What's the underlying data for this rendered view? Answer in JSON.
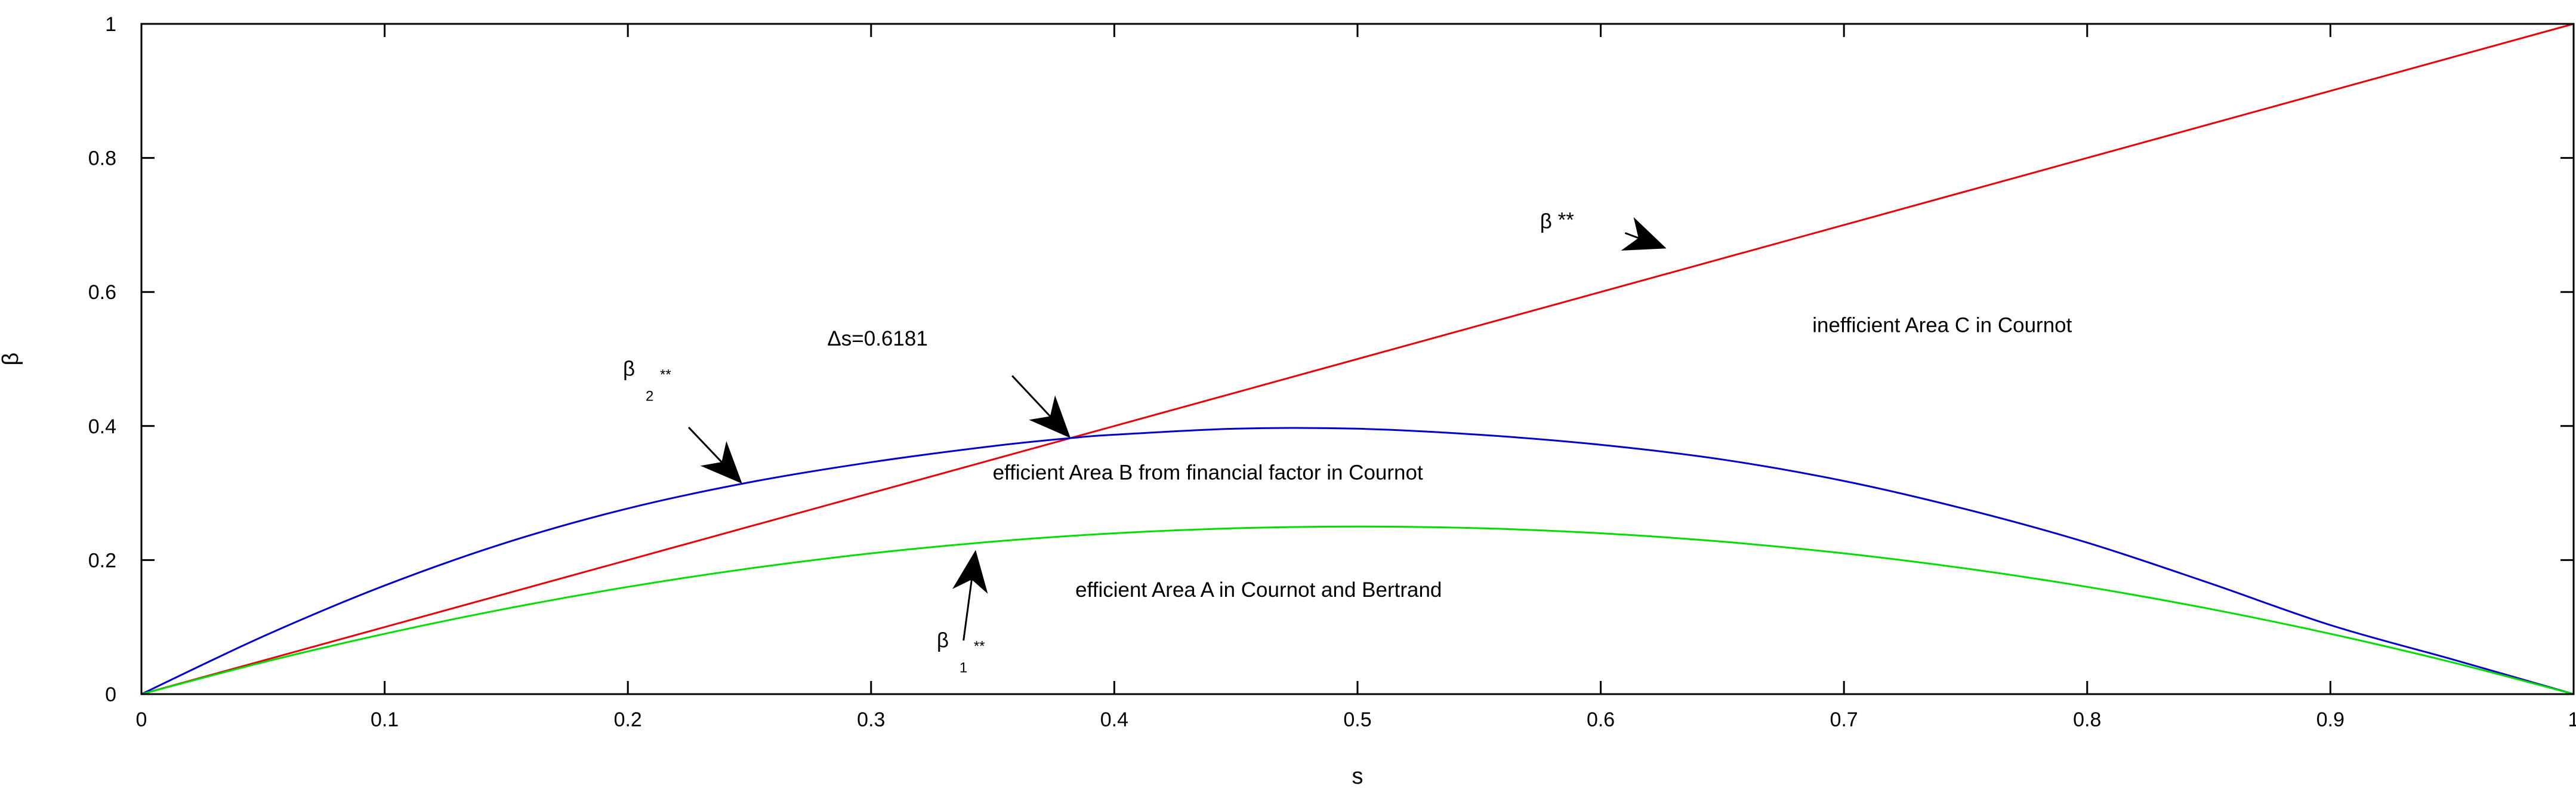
{
  "chart_data": {
    "type": "line",
    "xlabel": "s",
    "ylabel": "β",
    "xlim": [
      0,
      1
    ],
    "ylim": [
      0,
      1
    ],
    "xticks": [
      "0",
      "0.1",
      "0.2",
      "0.3",
      "0.4",
      "0.5",
      "0.6",
      "0.7",
      "0.8",
      "0.9",
      "1"
    ],
    "yticks": [
      "0",
      "0.2",
      "0.4",
      "0.6",
      "0.8",
      "1"
    ],
    "grid": false,
    "box": true,
    "series": [
      {
        "color": "#e8000b",
        "x": [
          0,
          0.1,
          0.2,
          0.3,
          0.4,
          0.5,
          0.6,
          0.7,
          0.8,
          0.9,
          1
        ],
        "y": [
          0,
          0.1,
          0.2,
          0.3,
          0.4,
          0.5,
          0.6,
          0.7,
          0.8,
          0.9,
          1
        ]
      },
      {
        "color": "#0000cc",
        "x": [
          0,
          0.05,
          0.1,
          0.15,
          0.2,
          0.25,
          0.3,
          0.35,
          0.382,
          0.4,
          0.45,
          0.5,
          0.55,
          0.6,
          0.65,
          0.7,
          0.75,
          0.8,
          0.85,
          0.9,
          0.95,
          1
        ],
        "y": [
          0,
          0.086,
          0.162,
          0.226,
          0.277,
          0.316,
          0.346,
          0.37,
          0.382,
          0.387,
          0.396,
          0.396,
          0.387,
          0.372,
          0.35,
          0.318,
          0.276,
          0.226,
          0.166,
          0.103,
          0.052,
          0
        ]
      },
      {
        "color": "#00dd00",
        "x": [
          0,
          0.05,
          0.1,
          0.15,
          0.2,
          0.25,
          0.3,
          0.35,
          0.4,
          0.45,
          0.5,
          0.55,
          0.6,
          0.65,
          0.7,
          0.75,
          0.8,
          0.85,
          0.9,
          0.95,
          1
        ],
        "y": [
          0,
          0.0475,
          0.09,
          0.1275,
          0.16,
          0.1875,
          0.21,
          0.2275,
          0.24,
          0.2475,
          0.25,
          0.2475,
          0.24,
          0.2275,
          0.21,
          0.1875,
          0.16,
          0.1275,
          0.09,
          0.0475,
          0
        ]
      }
    ],
    "annotations": {
      "beta_star_star": {
        "text": "β",
        "sup": "**",
        "x": 0.575,
        "y": 0.695
      },
      "beta2": {
        "text": "β",
        "sub": "2",
        "sup": "**",
        "x": 0.198,
        "y": 0.475
      },
      "beta1": {
        "text": "β",
        "sub": "1",
        "sup": "**",
        "x": 0.327,
        "y": 0.07
      },
      "delta_s": {
        "text": "Δs=0.6181",
        "x": 0.282,
        "y": 0.52
      },
      "area_a": {
        "text": "efficient Area A in Cournot and Bertrand",
        "x": 0.384,
        "y": 0.145
      },
      "area_b": {
        "text": "efficient Area B from financial factor in Cournot",
        "x": 0.35,
        "y": 0.32
      },
      "area_c": {
        "text": "inefficient Area C in Cournot",
        "x": 0.687,
        "y": 0.54
      }
    },
    "arrows": [
      {
        "name": "arrow-beta-star-star",
        "from": [
          0.61,
          0.688
        ],
        "to": [
          0.627,
          0.665
        ]
      },
      {
        "name": "arrow-beta2",
        "from": [
          0.225,
          0.398
        ],
        "to": [
          0.247,
          0.314
        ]
      },
      {
        "name": "arrow-delta-s",
        "from": [
          0.358,
          0.475
        ],
        "to": [
          0.382,
          0.382
        ]
      },
      {
        "name": "arrow-beta1",
        "from": [
          0.338,
          0.08
        ],
        "to": [
          0.343,
          0.215
        ]
      }
    ]
  }
}
